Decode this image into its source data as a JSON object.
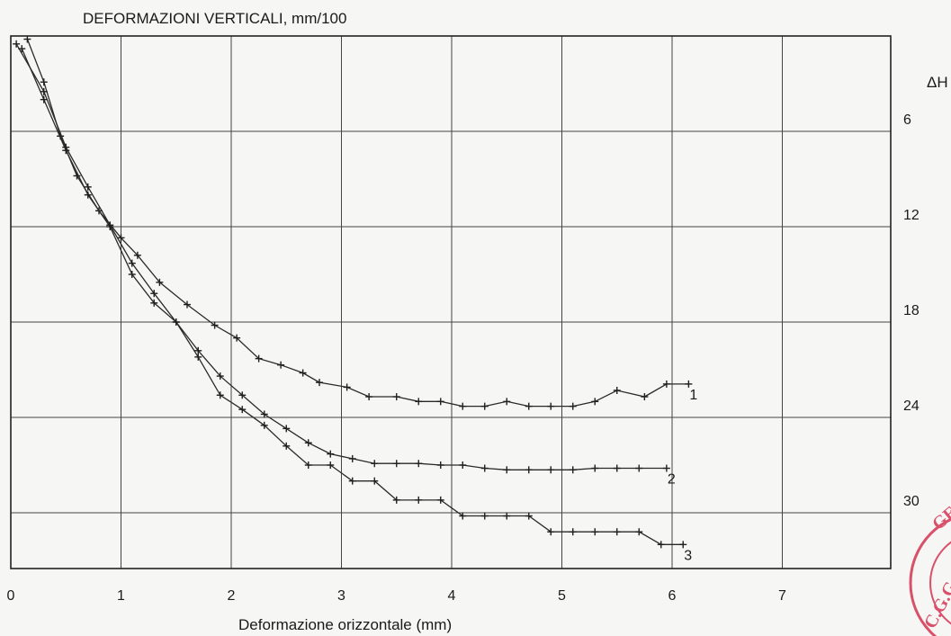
{
  "chart_data": {
    "type": "line",
    "title": "DEFORMAZIONI VERTICALI, mm/100",
    "xlabel": "Deformazione orizzontale (mm)",
    "ylabel": "ΔH",
    "xlim": [
      0,
      8
    ],
    "ylim": [
      0,
      33
    ],
    "y_axis_side": "right",
    "y_inverted": true,
    "grid": true,
    "x_ticks": [
      "0",
      "1",
      "2",
      "3",
      "4",
      "5",
      "6",
      "7"
    ],
    "y_ticks": [
      "6",
      "12",
      "18",
      "24",
      "30"
    ],
    "series": [
      {
        "name": "1",
        "x": [
          0.15,
          0.3,
          0.45,
          0.6,
          0.8,
          1.0,
          1.15,
          1.35,
          1.6,
          1.85,
          2.05,
          2.25,
          2.45,
          2.65,
          2.8,
          3.05,
          3.25,
          3.5,
          3.7,
          3.9,
          4.1,
          4.3,
          4.5,
          4.7,
          4.9,
          5.1,
          5.3,
          5.5,
          5.75,
          5.95,
          6.15
        ],
        "y": [
          0.2,
          2.9,
          6.3,
          8.8,
          11.0,
          12.7,
          13.8,
          15.5,
          16.9,
          18.2,
          19.0,
          20.3,
          20.7,
          21.2,
          21.8,
          22.1,
          22.7,
          22.7,
          23.0,
          23.0,
          23.3,
          23.3,
          23.0,
          23.3,
          23.3,
          23.3,
          23.0,
          22.3,
          22.7,
          21.9,
          21.9
        ]
      },
      {
        "name": "2",
        "x": [
          0.05,
          0.3,
          0.5,
          0.7,
          0.9,
          1.1,
          1.3,
          1.5,
          1.7,
          1.9,
          2.1,
          2.3,
          2.5,
          2.7,
          2.9,
          3.1,
          3.3,
          3.5,
          3.7,
          3.9,
          4.1,
          4.3,
          4.5,
          4.7,
          4.9,
          5.1,
          5.3,
          5.5,
          5.7,
          5.95
        ],
        "y": [
          0.5,
          3.5,
          7.0,
          9.5,
          11.9,
          14.3,
          16.2,
          18.0,
          19.8,
          21.4,
          22.6,
          23.8,
          24.7,
          25.6,
          26.3,
          26.6,
          26.9,
          26.9,
          26.9,
          27.0,
          27.0,
          27.2,
          27.3,
          27.3,
          27.3,
          27.3,
          27.2,
          27.2,
          27.2,
          27.2
        ]
      },
      {
        "name": "3",
        "x": [
          0.1,
          0.3,
          0.5,
          0.7,
          0.9,
          1.1,
          1.3,
          1.5,
          1.7,
          1.9,
          2.1,
          2.3,
          2.5,
          2.7,
          2.9,
          3.1,
          3.3,
          3.5,
          3.7,
          3.9,
          4.1,
          4.3,
          4.5,
          4.7,
          4.9,
          5.1,
          5.3,
          5.5,
          5.7,
          5.9,
          6.1
        ],
        "y": [
          0.8,
          4.0,
          7.2,
          10.0,
          12.0,
          15.0,
          16.8,
          18.0,
          20.2,
          22.6,
          23.5,
          24.5,
          25.8,
          27.0,
          27.0,
          28.0,
          28.0,
          29.2,
          29.2,
          29.2,
          30.2,
          30.2,
          30.2,
          30.2,
          31.2,
          31.2,
          31.2,
          31.2,
          31.2,
          32.0,
          32.0
        ]
      }
    ],
    "series_labels": [
      "1",
      "2",
      "3"
    ],
    "stamp_text": "C.G.G. GEO",
    "colors": {
      "ink": "#1f1f1f",
      "grid": "#444444",
      "paper": "#f6f6f4",
      "stamp": "#d9506a"
    }
  }
}
